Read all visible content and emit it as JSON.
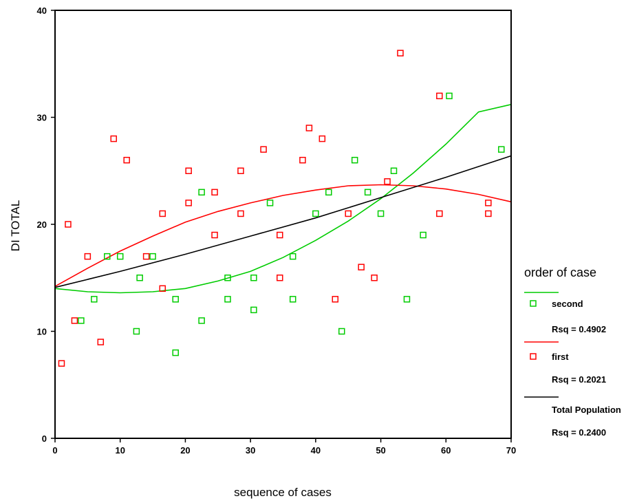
{
  "chart_data": {
    "type": "scatter",
    "xlabel": "sequence of cases",
    "ylabel": "DI TOTAL",
    "xlim": [
      0,
      70
    ],
    "ylim": [
      0,
      40
    ],
    "x_ticks": [
      0,
      10,
      20,
      30,
      40,
      50,
      60,
      70
    ],
    "y_ticks": [
      0,
      10,
      20,
      30,
      40
    ],
    "grid": false,
    "legend": {
      "placement": "right",
      "title": "order of case",
      "entries": [
        {
          "label": "second",
          "rsq": "Rsq = 0.4902"
        },
        {
          "label": "first",
          "rsq": "Rsq = 0.2021"
        },
        {
          "label": "Total Population",
          "rsq": "Rsq = 0.2400"
        }
      ]
    },
    "series": [
      {
        "name": "second",
        "color": "#00cc00",
        "marker": "open-square",
        "points": [
          [
            4,
            11
          ],
          [
            6,
            13
          ],
          [
            8,
            17
          ],
          [
            10,
            17
          ],
          [
            12.5,
            10
          ],
          [
            13,
            15
          ],
          [
            15,
            17
          ],
          [
            18.5,
            8
          ],
          [
            18.5,
            13
          ],
          [
            22.5,
            11
          ],
          [
            22.5,
            23
          ],
          [
            26.5,
            13
          ],
          [
            26.5,
            15
          ],
          [
            30.5,
            12
          ],
          [
            30.5,
            15
          ],
          [
            33,
            22
          ],
          [
            36.5,
            13
          ],
          [
            36.5,
            17
          ],
          [
            40,
            21
          ],
          [
            42,
            23
          ],
          [
            44,
            10
          ],
          [
            46,
            26
          ],
          [
            48,
            23
          ],
          [
            50,
            21
          ],
          [
            52,
            25
          ],
          [
            54,
            13
          ],
          [
            56.5,
            19
          ],
          [
            60.5,
            32
          ],
          [
            68.5,
            27
          ]
        ],
        "fit_curve": [
          [
            0,
            14.0
          ],
          [
            5,
            13.7
          ],
          [
            10,
            13.6
          ],
          [
            15,
            13.7
          ],
          [
            20,
            14.0
          ],
          [
            25,
            14.7
          ],
          [
            30,
            15.6
          ],
          [
            35,
            16.9
          ],
          [
            40,
            18.5
          ],
          [
            45,
            20.3
          ],
          [
            50,
            22.4
          ],
          [
            55,
            24.8
          ],
          [
            60,
            27.5
          ],
          [
            65,
            30.5
          ],
          [
            70,
            31.2
          ]
        ]
      },
      {
        "name": "first",
        "color": "#ff0000",
        "marker": "open-square",
        "points": [
          [
            1,
            7
          ],
          [
            2,
            20
          ],
          [
            3,
            11
          ],
          [
            5,
            17
          ],
          [
            7,
            9
          ],
          [
            9,
            28
          ],
          [
            11,
            26
          ],
          [
            14,
            17
          ],
          [
            16.5,
            14
          ],
          [
            16.5,
            21
          ],
          [
            20.5,
            22
          ],
          [
            20.5,
            25
          ],
          [
            24.5,
            19
          ],
          [
            24.5,
            23
          ],
          [
            28.5,
            21
          ],
          [
            28.5,
            25
          ],
          [
            32,
            27
          ],
          [
            34.5,
            15
          ],
          [
            34.5,
            19
          ],
          [
            38,
            26
          ],
          [
            39,
            29
          ],
          [
            41,
            28
          ],
          [
            43,
            13
          ],
          [
            45,
            21
          ],
          [
            47,
            16
          ],
          [
            49,
            15
          ],
          [
            51,
            24
          ],
          [
            53,
            36
          ],
          [
            59,
            21
          ],
          [
            59,
            32
          ],
          [
            66.5,
            21
          ],
          [
            66.5,
            22
          ]
        ],
        "fit_curve": [
          [
            0,
            14.2
          ],
          [
            5,
            15.9
          ],
          [
            10,
            17.5
          ],
          [
            15,
            18.9
          ],
          [
            20,
            20.2
          ],
          [
            25,
            21.2
          ],
          [
            30,
            22.0
          ],
          [
            35,
            22.7
          ],
          [
            40,
            23.2
          ],
          [
            45,
            23.6
          ],
          [
            50,
            23.7
          ],
          [
            55,
            23.6
          ],
          [
            60,
            23.3
          ],
          [
            65,
            22.8
          ],
          [
            70,
            22.1
          ]
        ]
      },
      {
        "name": "Total Population",
        "color": "#000000",
        "marker": "none",
        "points": [],
        "fit_curve": [
          [
            0,
            14.1
          ],
          [
            10,
            15.6
          ],
          [
            20,
            17.2
          ],
          [
            30,
            18.9
          ],
          [
            40,
            20.6
          ],
          [
            50,
            22.5
          ],
          [
            60,
            24.4
          ],
          [
            70,
            26.4
          ]
        ]
      }
    ]
  }
}
